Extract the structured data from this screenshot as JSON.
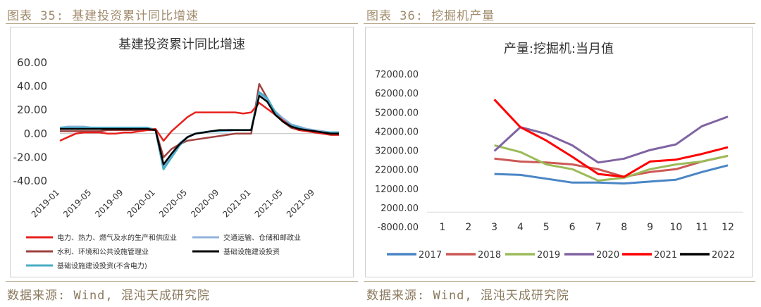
{
  "left": {
    "figure_title": "图表 35: 基建投资累计同比增速",
    "source": "数据来源: Wind, 混沌天成研究院"
  },
  "right": {
    "figure_title": "图表 36: 挖掘机产量",
    "source": "数据来源: Wind, 混沌天成研究院"
  },
  "chart_data": [
    {
      "type": "line",
      "title": "基建投资累计同比增速",
      "x_ticks": [
        "2019-01",
        "2019-05",
        "2019-09",
        "2020-01",
        "2020-05",
        "2020-09",
        "2021-01",
        "2021-05",
        "2021-09"
      ],
      "x_tick_positions": [
        0,
        4,
        8,
        12,
        16,
        20,
        24,
        28,
        32
      ],
      "ylim": [
        -40,
        60
      ],
      "y_ticks": [
        60,
        40,
        20,
        0,
        -20,
        -40
      ],
      "y_tick_labels": [
        "60.00",
        "40.00",
        "20.00",
        "0.00",
        "-20.00",
        "-40.00"
      ],
      "legend_position": "bottom",
      "series": [
        {
          "name": "电力、热力、燃气及水的生产和供应业",
          "color": "#e8201c",
          "values": [
            -6,
            -3,
            0,
            1,
            1,
            1,
            0,
            0,
            1,
            1,
            2,
            3,
            4,
            -6,
            2,
            8,
            14,
            18,
            18,
            18,
            18,
            18,
            18,
            17,
            18,
            26,
            21,
            16,
            11,
            6,
            3,
            2,
            1,
            0,
            -1,
            -1
          ]
        },
        {
          "name": "交通运输、仓储和邮政业",
          "color": "#92b3dc",
          "values": [
            5,
            6,
            6,
            6,
            5,
            5,
            5,
            5,
            4,
            4,
            4,
            4,
            4,
            -28,
            -17,
            -8,
            -3,
            0,
            1,
            2,
            2,
            2,
            3,
            3,
            3,
            34,
            28,
            19,
            13,
            8,
            6,
            4,
            3,
            2,
            1,
            1
          ]
        },
        {
          "name": "水利、环境和公共设施管理业",
          "color": "#9e413f",
          "values": [
            2,
            2,
            2,
            2,
            2,
            2,
            3,
            3,
            3,
            3,
            3,
            3,
            3,
            -20,
            -13,
            -9,
            -6,
            -5,
            -4,
            -3,
            -2,
            -1,
            0,
            0,
            0,
            42,
            30,
            16,
            10,
            5,
            3,
            2,
            1,
            0,
            -1,
            -1
          ]
        },
        {
          "name": "基础设施建设投资",
          "color": "#000000",
          "values": [
            4,
            4,
            4,
            4,
            4,
            4,
            4,
            4,
            4,
            4,
            4,
            4,
            3,
            -26,
            -17,
            -9,
            -3,
            0,
            1,
            2,
            3,
            3,
            3,
            3,
            3,
            32,
            27,
            16,
            10,
            6,
            4,
            3,
            2,
            1,
            0,
            0
          ]
        },
        {
          "name": "基础设施建设投资(不含电力)",
          "color": "#4bacc6",
          "values": [
            5,
            5,
            5,
            5,
            5,
            5,
            5,
            5,
            5,
            5,
            5,
            5,
            3,
            -30,
            -20,
            -10,
            -3,
            0,
            1,
            2,
            2,
            3,
            3,
            3,
            3,
            35,
            30,
            18,
            11,
            7,
            5,
            3,
            2,
            1,
            1,
            1
          ]
        }
      ]
    },
    {
      "type": "line",
      "title": "产量:挖掘机:当月值",
      "categories": [
        "1",
        "2",
        "3",
        "4",
        "5",
        "6",
        "7",
        "8",
        "9",
        "10",
        "11",
        "12"
      ],
      "ylim": [
        -8000,
        72000
      ],
      "y_ticks": [
        72000,
        62000,
        52000,
        42000,
        32000,
        22000,
        12000,
        2000,
        -8000
      ],
      "y_tick_labels": [
        "72000.00",
        "62000.00",
        "52000.00",
        "42000.00",
        "32000.00",
        "22000.00",
        "12000.00",
        "2000.00",
        "-8000.00"
      ],
      "legend_position": "bottom",
      "series": [
        {
          "name": "2017",
          "color": "#4a86c5",
          "values": [
            null,
            null,
            20000,
            19500,
            17500,
            15500,
            15500,
            15000,
            16000,
            17000,
            21000,
            24500
          ]
        },
        {
          "name": "2018",
          "color": "#cc5855",
          "values": [
            null,
            null,
            28000,
            26500,
            26000,
            25000,
            22500,
            18500,
            21000,
            22500,
            26500,
            29500
          ]
        },
        {
          "name": "2019",
          "color": "#9bbb59",
          "values": [
            null,
            null,
            35000,
            31500,
            25000,
            22500,
            16500,
            18000,
            22500,
            25000,
            26500,
            29500
          ]
        },
        {
          "name": "2020",
          "color": "#8064a2",
          "values": [
            null,
            null,
            32000,
            44500,
            41000,
            35000,
            26000,
            28000,
            32500,
            35500,
            45000,
            50000
          ]
        },
        {
          "name": "2021",
          "color": "#ff0000",
          "values": [
            null,
            null,
            59000,
            44500,
            37500,
            29000,
            20000,
            18500,
            26500,
            27500,
            30500,
            34000
          ]
        },
        {
          "name": "2022",
          "color": "#000000",
          "values": [
            null,
            null,
            null,
            null,
            null,
            null,
            null,
            null,
            null,
            null,
            null,
            null
          ]
        }
      ]
    }
  ]
}
